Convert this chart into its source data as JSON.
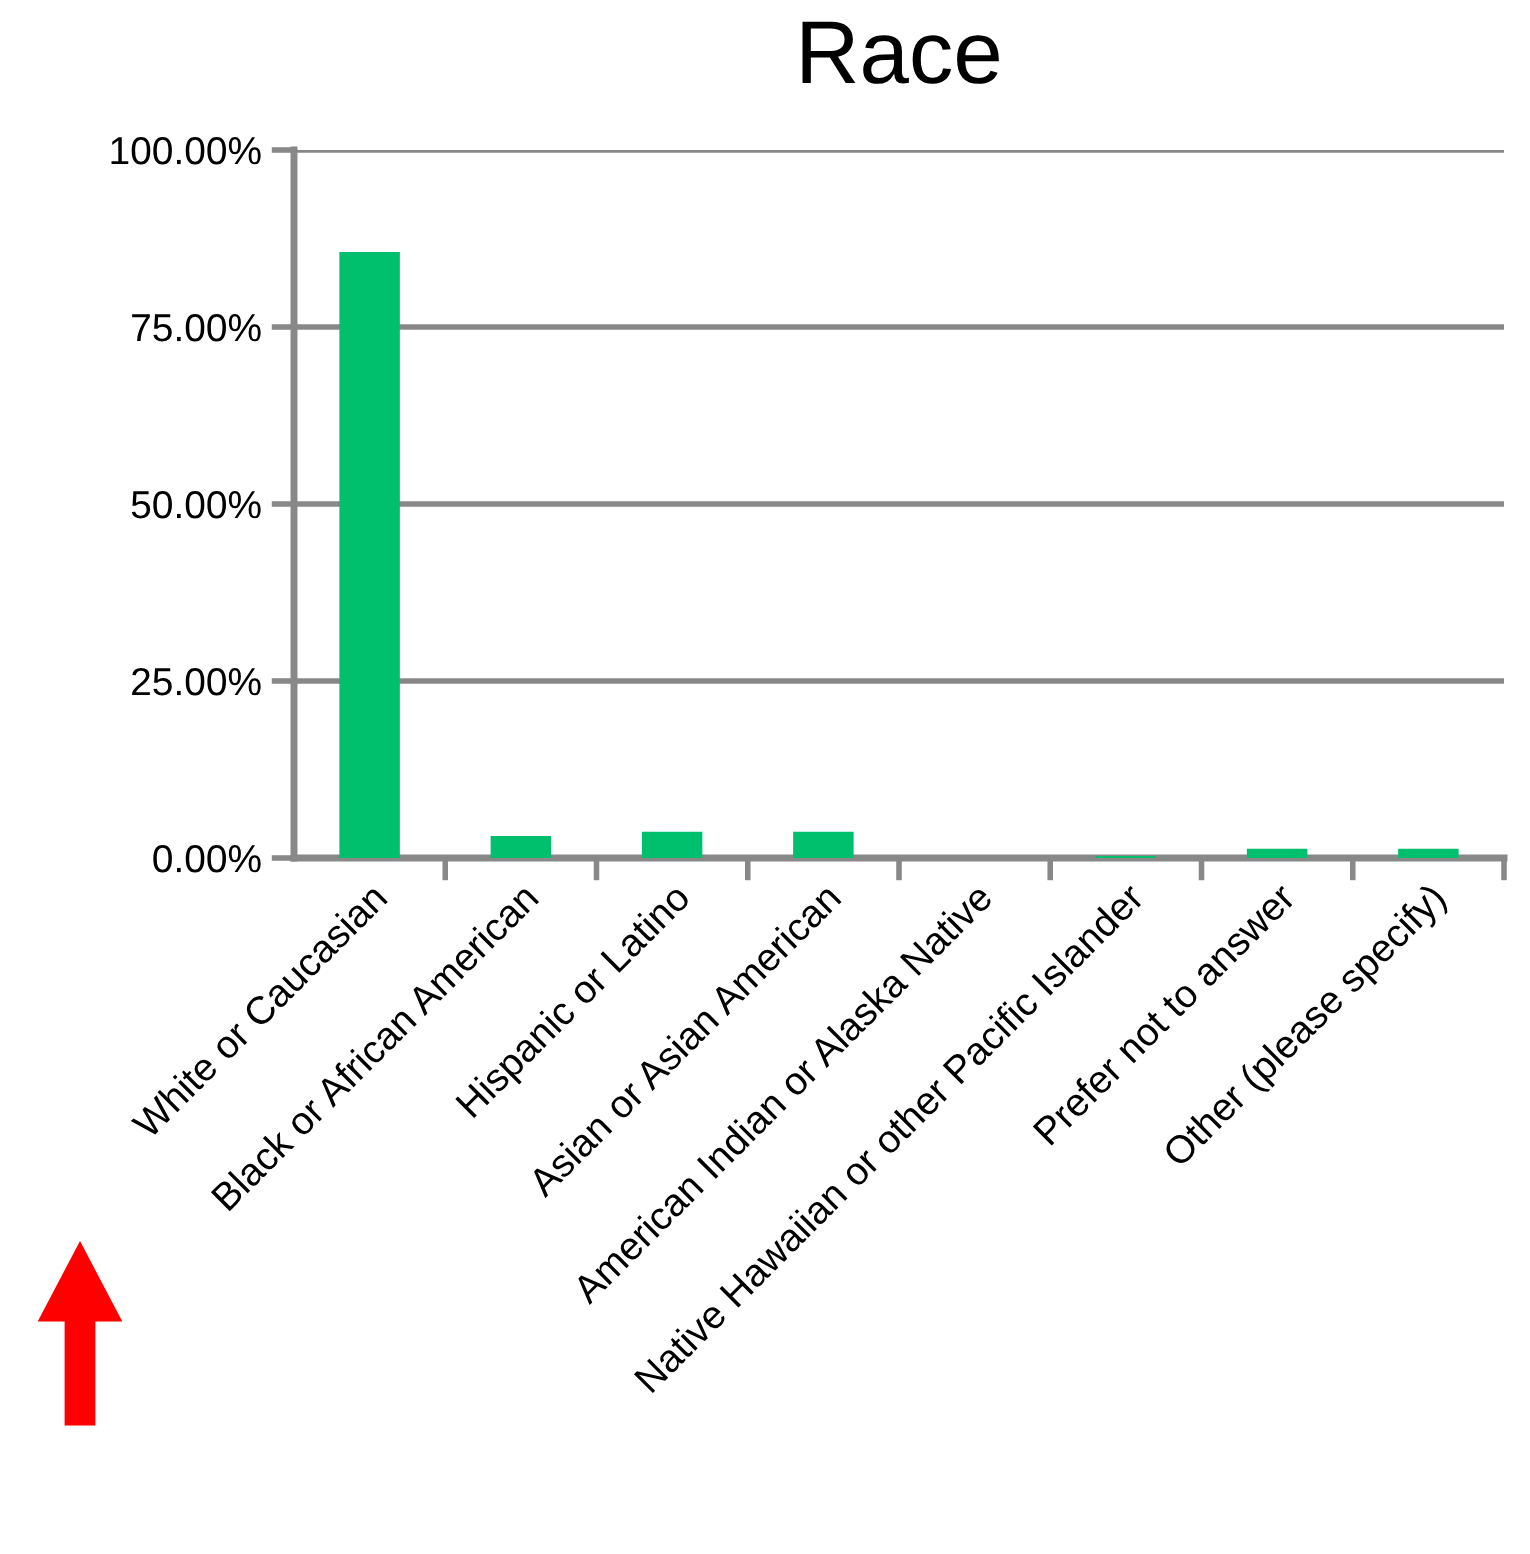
{
  "chart_data": {
    "type": "bar",
    "title": "Race",
    "categories": [
      "White or Caucasian",
      "Black or African American",
      "Hispanic or Latino",
      "Asian or Asian American",
      "American Indian or Alaska Native",
      "Native Hawaiian or other Pacific Islander",
      "Prefer not to answer",
      "Other (please specify)"
    ],
    "values": [
      85.6,
      3.1,
      3.7,
      3.7,
      0,
      0.3,
      1.3,
      1.3
    ],
    "color": "#00c06e",
    "ylim": [
      0,
      100
    ],
    "yticks": [
      {
        "value": 0,
        "label": "0.00%"
      },
      {
        "value": 25,
        "label": "25.00%"
      },
      {
        "value": 50,
        "label": "50.00%"
      },
      {
        "value": 75,
        "label": "75.00%"
      },
      {
        "value": 100,
        "label": "100.00%"
      }
    ],
    "grid": "y",
    "legend": false
  }
}
